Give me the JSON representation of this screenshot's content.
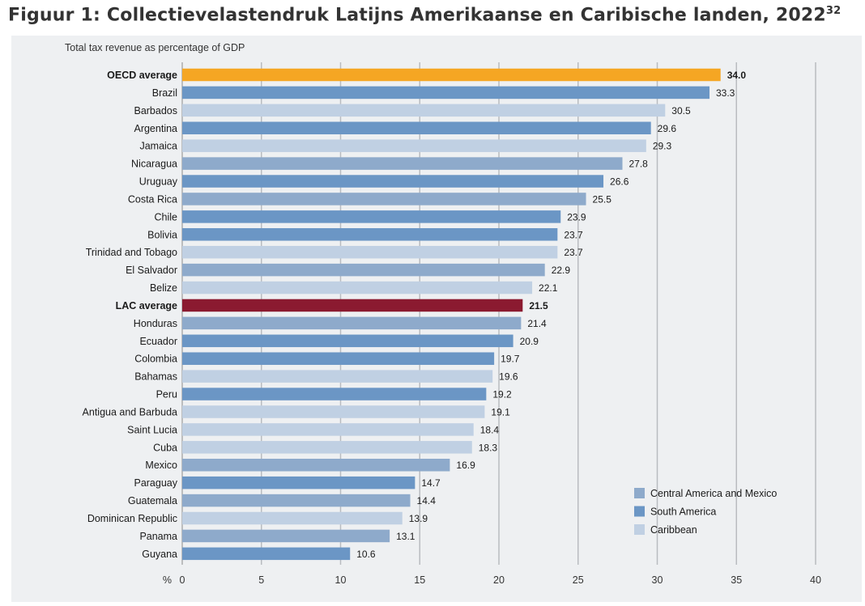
{
  "figure": {
    "title": "Figuur 1: Collectievelastendruk Latijns Amerikaanse en Caribische landen, 2022",
    "footnote_ref": "32"
  },
  "chart_data": {
    "type": "bar",
    "orientation": "horizontal",
    "subtitle": "Total tax revenue as percentage of GDP",
    "xlabel": "%",
    "xlim": [
      0,
      40
    ],
    "xticks": [
      0,
      5,
      10,
      15,
      20,
      25,
      30,
      35,
      40
    ],
    "grid": true,
    "legend_position": "bottom-right",
    "legend": [
      {
        "name": "Central America and Mexico",
        "color": "#8eaacb"
      },
      {
        "name": "South America",
        "color": "#6b96c5"
      },
      {
        "name": "Caribbean",
        "color": "#c0d0e3"
      }
    ],
    "highlight_colors": {
      "OECD": "#f5a623",
      "LAC": "#8b1a30"
    },
    "bars": [
      {
        "label": "OECD average",
        "value": 34.0,
        "value_label": "34.0",
        "group": "OECD",
        "bold": true
      },
      {
        "label": "Brazil",
        "value": 33.3,
        "value_label": "33.3",
        "group": "South America"
      },
      {
        "label": "Barbados",
        "value": 30.5,
        "value_label": "30.5",
        "group": "Caribbean"
      },
      {
        "label": "Argentina",
        "value": 29.6,
        "value_label": "29.6",
        "group": "South America"
      },
      {
        "label": "Jamaica",
        "value": 29.3,
        "value_label": "29.3",
        "group": "Caribbean"
      },
      {
        "label": "Nicaragua",
        "value": 27.8,
        "value_label": "27.8",
        "group": "Central America and Mexico"
      },
      {
        "label": "Uruguay",
        "value": 26.6,
        "value_label": "26.6",
        "group": "South America"
      },
      {
        "label": "Costa Rica",
        "value": 25.5,
        "value_label": "25.5",
        "group": "Central America and Mexico"
      },
      {
        "label": "Chile",
        "value": 23.9,
        "value_label": "23.9",
        "group": "South America"
      },
      {
        "label": "Bolivia",
        "value": 23.7,
        "value_label": "23.7",
        "group": "South America"
      },
      {
        "label": "Trinidad and Tobago",
        "value": 23.7,
        "value_label": "23.7",
        "group": "Caribbean"
      },
      {
        "label": "El Salvador",
        "value": 22.9,
        "value_label": "22.9",
        "group": "Central America and Mexico"
      },
      {
        "label": "Belize",
        "value": 22.1,
        "value_label": "22.1",
        "group": "Caribbean"
      },
      {
        "label": "LAC average",
        "value": 21.5,
        "value_label": "21.5",
        "group": "LAC",
        "bold": true
      },
      {
        "label": "Honduras",
        "value": 21.4,
        "value_label": "21.4",
        "group": "Central America and Mexico"
      },
      {
        "label": "Ecuador",
        "value": 20.9,
        "value_label": "20.9",
        "group": "South America"
      },
      {
        "label": "Colombia",
        "value": 19.7,
        "value_label": "19.7",
        "group": "South America"
      },
      {
        "label": "Bahamas",
        "value": 19.6,
        "value_label": "19.6",
        "group": "Caribbean"
      },
      {
        "label": "Peru",
        "value": 19.2,
        "value_label": "19.2",
        "group": "South America"
      },
      {
        "label": "Antigua and Barbuda",
        "value": 19.1,
        "value_label": "19.1",
        "group": "Caribbean"
      },
      {
        "label": "Saint Lucia",
        "value": 18.4,
        "value_label": "18.4",
        "group": "Caribbean"
      },
      {
        "label": "Cuba",
        "value": 18.3,
        "value_label": "18.3",
        "group": "Caribbean"
      },
      {
        "label": "Mexico",
        "value": 16.9,
        "value_label": "16.9",
        "group": "Central America and Mexico"
      },
      {
        "label": "Paraguay",
        "value": 14.7,
        "value_label": "14.7",
        "group": "South America"
      },
      {
        "label": "Guatemala",
        "value": 14.4,
        "value_label": "14.4",
        "group": "Central America and Mexico"
      },
      {
        "label": "Dominican Republic",
        "value": 13.9,
        "value_label": "13.9",
        "group": "Caribbean"
      },
      {
        "label": "Panama",
        "value": 13.1,
        "value_label": "13.1",
        "group": "Central America and Mexico"
      },
      {
        "label": "Guyana",
        "value": 10.6,
        "value_label": "10.6",
        "group": "South America"
      }
    ]
  }
}
